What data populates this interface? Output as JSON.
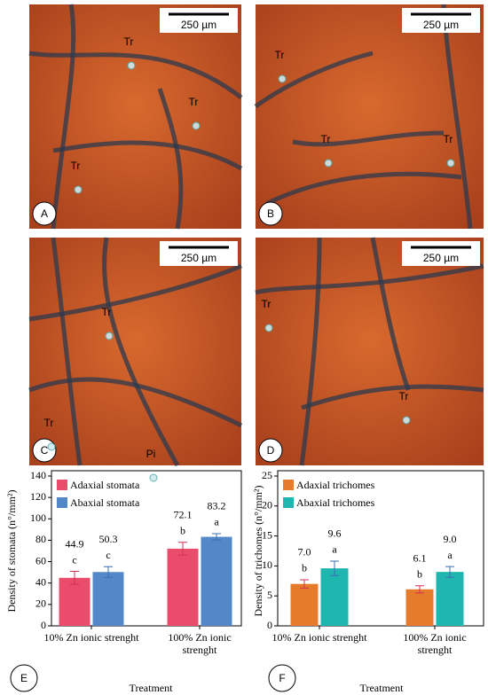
{
  "photos": [
    {
      "letter": "A",
      "scale": "250 µm",
      "labels": [
        "Tr",
        "Tr",
        "Tr"
      ]
    },
    {
      "letter": "B",
      "scale": "250 µm",
      "labels": [
        "Tr",
        "Tr",
        "Tr"
      ]
    },
    {
      "letter": "C",
      "scale": "250 µm",
      "labels": [
        "Tr",
        "Tr",
        "Pi"
      ]
    },
    {
      "letter": "D",
      "scale": "250 µm",
      "labels": [
        "Tr",
        "Tr"
      ]
    }
  ],
  "chart_data": [
    {
      "type": "bar",
      "panel": "E",
      "y_label": "Density of stomata (n°/mm²)",
      "x_label": "Treatment",
      "categories": [
        "10% Zn ionic strenght",
        "100% Zn ionic strenght"
      ],
      "series": [
        {
          "name": "Adaxial stomata",
          "color": "#ea4d6c",
          "values": [
            44.9,
            72.1
          ],
          "errors": [
            6,
            6
          ],
          "letters": [
            "c",
            "b"
          ]
        },
        {
          "name": "Abaxial stomata",
          "color": "#5288c8",
          "values": [
            50.3,
            83.2
          ],
          "errors": [
            5,
            3
          ],
          "letters": [
            "c",
            "a"
          ]
        }
      ],
      "ylim": [
        0,
        140
      ],
      "yticks": [
        0,
        20,
        40,
        60,
        80,
        100,
        120,
        140
      ]
    },
    {
      "type": "bar",
      "panel": "F",
      "y_label": "Density of trichomes (n°/mm²)",
      "x_label": "Treatment",
      "categories": [
        "10% Zn ionic strenght",
        "100% Zn ionic strenght"
      ],
      "series": [
        {
          "name": "Adaxial trichomes",
          "color": "#e67b2c",
          "values": [
            7.0,
            6.1
          ],
          "value_labels": [
            "7.0",
            "6.1"
          ],
          "errors": [
            0.7,
            0.6
          ],
          "letters": [
            "b",
            "b"
          ]
        },
        {
          "name": "Abaxial trichomes",
          "color": "#20b6b0",
          "values": [
            9.6,
            9.0
          ],
          "value_labels": [
            "9.6",
            "9.0"
          ],
          "errors": [
            1.2,
            0.9
          ],
          "letters": [
            "a",
            "a"
          ]
        }
      ],
      "ylim": [
        0,
        25
      ],
      "yticks": [
        0,
        5,
        10,
        15,
        20,
        25
      ]
    }
  ]
}
